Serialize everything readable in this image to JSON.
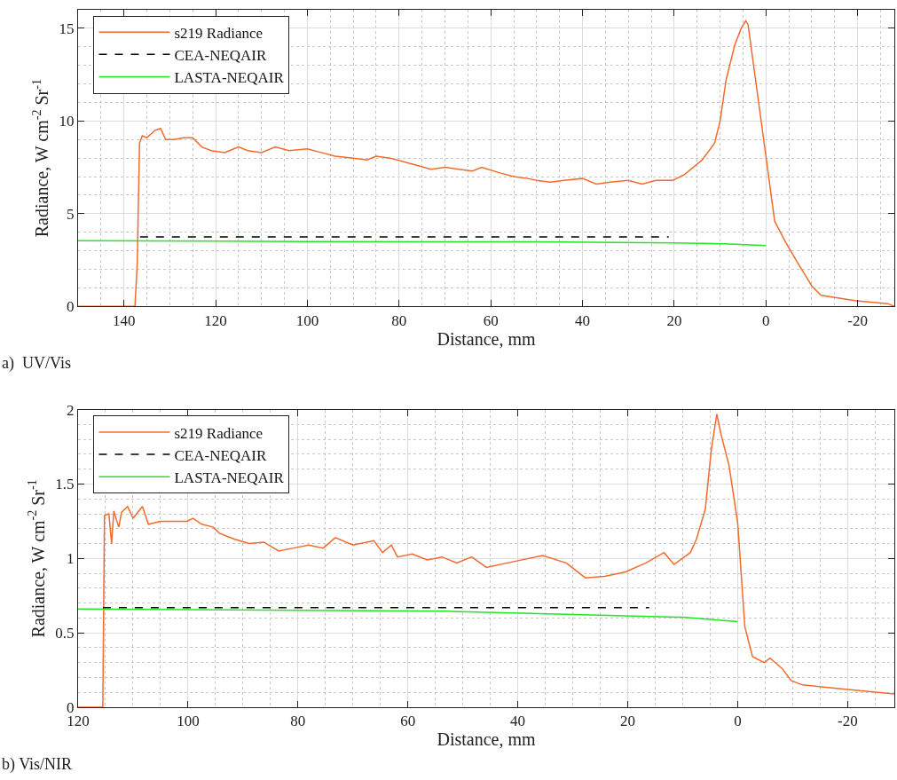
{
  "chart_data": [
    {
      "type": "line",
      "xlabel": "Distance, mm",
      "ylabel": "Radiance, W cm$^{-2}$ Sr$^{-1}$",
      "annotations": [
        "a)  UV/Vis"
      ],
      "xlim": [
        150,
        -28
      ],
      "xticks": [
        140,
        120,
        100,
        80,
        60,
        40,
        20,
        0,
        -20
      ],
      "ylim": [
        0,
        16
      ],
      "yticks": [
        0,
        5,
        10,
        15
      ],
      "grid": true,
      "legend": "top left",
      "series": [
        {
          "name": "s219 Radiance",
          "color": "#f26b2e",
          "line_style": "solid",
          "x": [
            150,
            137.6,
            137.1,
            136.6,
            136,
            135,
            133.2,
            132,
            130.9,
            129,
            127,
            125,
            123,
            121,
            118,
            115,
            113,
            110,
            107,
            104,
            100,
            97,
            94,
            90,
            87,
            85,
            82,
            79,
            76,
            73,
            70,
            67,
            64,
            62,
            58,
            55,
            52,
            50,
            47,
            44,
            40,
            37,
            34,
            30,
            27,
            24,
            20.3,
            17.8,
            13.9,
            11.2,
            10,
            8.7,
            6.8,
            5.4,
            4.4,
            3.9,
            2.3,
            0,
            -1.9,
            -4.2,
            -6.8,
            -10,
            -12,
            -19.7,
            -26.6,
            -28
          ],
          "values": [
            0,
            0,
            2.3,
            8.8,
            9.2,
            9.1,
            9.5,
            9.6,
            9.0,
            9.0,
            9.1,
            9.1,
            8.6,
            8.4,
            8.3,
            8.6,
            8.4,
            8.3,
            8.6,
            8.4,
            8.5,
            8.3,
            8.1,
            8.0,
            7.9,
            8.1,
            8.0,
            7.8,
            7.6,
            7.4,
            7.5,
            7.4,
            7.3,
            7.5,
            7.2,
            7.0,
            6.9,
            6.8,
            6.7,
            6.8,
            6.9,
            6.6,
            6.7,
            6.8,
            6.6,
            6.8,
            6.8,
            7.1,
            7.9,
            8.8,
            10.0,
            12.2,
            14.1,
            15.0,
            15.4,
            15.2,
            12.3,
            8.1,
            4.6,
            3.5,
            2.4,
            1.1,
            0.6,
            0.3,
            0.15,
            0
          ]
        },
        {
          "name": "CEA-NEQAIR",
          "color": "#000000",
          "line_style": "dashed",
          "x": [
            136.5,
            21.2
          ],
          "values": [
            3.75,
            3.75
          ]
        },
        {
          "name": "LASTA-NEQAIR",
          "color": "#22e622",
          "line_style": "solid",
          "x": [
            150,
            100,
            50,
            20,
            9,
            0
          ],
          "values": [
            3.55,
            3.5,
            3.48,
            3.42,
            3.38,
            3.28
          ]
        }
      ]
    },
    {
      "type": "line",
      "xlabel": "Distance, mm",
      "ylabel": "Radiance, W cm$^{-2}$ Sr$^{-1}$",
      "annotations": [
        "b) Vis/NIR"
      ],
      "xlim": [
        120,
        -28.5
      ],
      "xticks": [
        120,
        100,
        80,
        60,
        40,
        20,
        0,
        -20
      ],
      "ylim": [
        0,
        2
      ],
      "yticks": [
        0,
        0.5,
        1,
        1.5,
        2
      ],
      "grid": true,
      "legend": "top left",
      "series": [
        {
          "name": "s219 Radiance",
          "color": "#f26b2e",
          "line_style": "solid",
          "x": [
            120,
            115.5,
            115.2,
            114.4,
            113.9,
            113.5,
            112.6,
            112.1,
            111,
            110,
            108.3,
            107.2,
            105,
            102.3,
            100.2,
            99.1,
            97.5,
            95.4,
            94.3,
            91.6,
            88.9,
            86.2,
            83.5,
            80.8,
            78.1,
            75.4,
            73.2,
            70,
            66.2,
            64.6,
            63,
            61.9,
            59.2,
            56.5,
            53.8,
            51.1,
            48.4,
            45.7,
            41.9,
            35.5,
            31.2,
            27.7,
            24.2,
            20.4,
            16.7,
            13.4,
            11.6,
            8.6,
            7.5,
            5.9,
            4.8,
            3.8,
            3.0,
            1.6,
            0,
            -1.3,
            -2.7,
            -4.8,
            -5.9,
            -8.1,
            -9.7,
            -11.8,
            -17.2,
            -22.6,
            -28.5
          ],
          "values": [
            0,
            0,
            1.29,
            1.3,
            1.1,
            1.32,
            1.21,
            1.31,
            1.35,
            1.27,
            1.35,
            1.23,
            1.25,
            1.25,
            1.25,
            1.27,
            1.23,
            1.21,
            1.17,
            1.13,
            1.1,
            1.11,
            1.05,
            1.07,
            1.09,
            1.07,
            1.14,
            1.09,
            1.12,
            1.04,
            1.09,
            1.01,
            1.03,
            0.99,
            1.01,
            0.97,
            1.01,
            0.94,
            0.97,
            1.02,
            0.97,
            0.87,
            0.88,
            0.91,
            0.97,
            1.04,
            0.96,
            1.04,
            1.13,
            1.33,
            1.73,
            1.97,
            1.83,
            1.63,
            1.24,
            0.54,
            0.34,
            0.3,
            0.33,
            0.26,
            0.18,
            0.15,
            0.13,
            0.11,
            0.09
          ]
        },
        {
          "name": "CEA-NEQAIR",
          "color": "#000000",
          "line_style": "dashed",
          "x": [
            115.5,
            16.1
          ],
          "values": [
            0.67,
            0.67
          ]
        },
        {
          "name": "LASTA-NEQAIR",
          "color": "#22e622",
          "line_style": "solid",
          "x": [
            120,
            53,
            10,
            0
          ],
          "values": [
            0.66,
            0.645,
            0.605,
            0.575
          ]
        }
      ]
    }
  ]
}
